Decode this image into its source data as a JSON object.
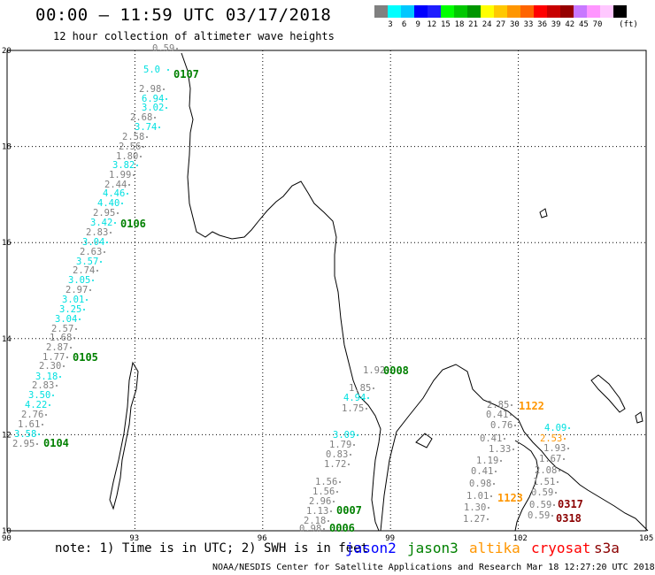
{
  "header": {
    "title": "00:00 – 11:59 UTC 03/17/2018",
    "subtitle": "12 hour collection of altimeter wave heights"
  },
  "legend": {
    "unit": "(ft)",
    "colors": [
      "#808080",
      "#00ffff",
      "#00c8ff",
      "#0000ff",
      "#1e1eff",
      "#00ff00",
      "#00c800",
      "#009600",
      "#ffff00",
      "#ffc800",
      "#ff9600",
      "#ff6400",
      "#ff0000",
      "#c80000",
      "#960000",
      "#c878ff",
      "#ff96ff",
      "#ffc8ff",
      "#000000"
    ],
    "labels": [
      "3",
      "6",
      "9",
      "12",
      "15",
      "18",
      "21",
      "24",
      "27",
      "30",
      "33",
      "36",
      "39",
      "42",
      "45",
      "70"
    ]
  },
  "axes": {
    "lon_ticks": [
      "90",
      "93",
      "96",
      "99",
      "102",
      "105"
    ],
    "lat_ticks": [
      "20",
      "18",
      "16",
      "14",
      "12",
      "10"
    ]
  },
  "measurements": [
    {
      "t": "0.59",
      "c": "#808080"
    },
    {
      "t": "5.0",
      "c": "#00e0e0"
    },
    {
      "t": "2.98",
      "c": "#808080"
    },
    {
      "t": "6.94",
      "c": "#00e0e0"
    },
    {
      "t": "3.02",
      "c": "#00e0e0"
    },
    {
      "t": "2.68",
      "c": "#808080"
    },
    {
      "t": "3.74",
      "c": "#00e0e0"
    },
    {
      "t": "2.58",
      "c": "#808080"
    },
    {
      "t": "2.56",
      "c": "#808080"
    },
    {
      "t": "1.80",
      "c": "#808080"
    },
    {
      "t": "3.82",
      "c": "#00e0e0"
    },
    {
      "t": "1.99",
      "c": "#808080"
    },
    {
      "t": "2.44",
      "c": "#808080"
    },
    {
      "t": "4.46",
      "c": "#00e0e0"
    },
    {
      "t": "4.40",
      "c": "#00e0e0"
    },
    {
      "t": "2.95",
      "c": "#808080"
    },
    {
      "t": "3.42",
      "c": "#00e0e0"
    },
    {
      "t": "2.83",
      "c": "#808080"
    },
    {
      "t": "3.04",
      "c": "#00e0e0"
    },
    {
      "t": "2.63",
      "c": "#808080"
    },
    {
      "t": "3.57",
      "c": "#00e0e0"
    },
    {
      "t": "2.74",
      "c": "#808080"
    },
    {
      "t": "3.05",
      "c": "#00e0e0"
    },
    {
      "t": "2.97",
      "c": "#808080"
    },
    {
      "t": "3.01",
      "c": "#00e0e0"
    },
    {
      "t": "3.25",
      "c": "#00e0e0"
    },
    {
      "t": "3.04",
      "c": "#00e0e0"
    },
    {
      "t": "2.57",
      "c": "#808080"
    },
    {
      "t": "1.68",
      "c": "#808080"
    },
    {
      "t": "2.87",
      "c": "#808080"
    },
    {
      "t": "1.77",
      "c": "#808080"
    },
    {
      "t": "2.30",
      "c": "#808080"
    },
    {
      "t": "3.18",
      "c": "#00e0e0"
    },
    {
      "t": "2.83",
      "c": "#808080"
    },
    {
      "t": "3.50",
      "c": "#00e0e0"
    },
    {
      "t": "4.22",
      "c": "#00e0e0"
    },
    {
      "t": "2.76",
      "c": "#808080"
    },
    {
      "t": "1.61",
      "c": "#808080"
    },
    {
      "t": "3.58",
      "c": "#00e0e0"
    },
    {
      "t": "2.95",
      "c": "#808080"
    },
    {
      "t": "1.92",
      "c": "#808080"
    },
    {
      "t": "1.85",
      "c": "#808080"
    },
    {
      "t": "4.94",
      "c": "#00e0e0"
    },
    {
      "t": "1.75",
      "c": "#808080"
    },
    {
      "t": "3.09",
      "c": "#00e0e0"
    },
    {
      "t": "1.79",
      "c": "#808080"
    },
    {
      "t": "0.83",
      "c": "#808080"
    },
    {
      "t": "1.72",
      "c": "#808080"
    },
    {
      "t": "1.56",
      "c": "#808080"
    },
    {
      "t": "1.56",
      "c": "#808080"
    },
    {
      "t": "2.96",
      "c": "#808080"
    },
    {
      "t": "1.13",
      "c": "#808080"
    },
    {
      "t": "2.18",
      "c": "#808080"
    },
    {
      "t": "0.98",
      "c": "#808080"
    },
    {
      "t": "2.85",
      "c": "#808080"
    },
    {
      "t": "0.41",
      "c": "#808080"
    },
    {
      "t": "0.76",
      "c": "#808080"
    },
    {
      "t": "0.41",
      "c": "#808080"
    },
    {
      "t": "1.33",
      "c": "#808080"
    },
    {
      "t": "1.19",
      "c": "#808080"
    },
    {
      "t": "0.41",
      "c": "#808080"
    },
    {
      "t": "0.98",
      "c": "#808080"
    },
    {
      "t": "1.01",
      "c": "#808080"
    },
    {
      "t": "1.30",
      "c": "#808080"
    },
    {
      "t": "1.27",
      "c": "#808080"
    },
    {
      "t": "4.09",
      "c": "#00e0e0"
    },
    {
      "t": "2.53",
      "c": "#ff9600"
    },
    {
      "t": "1.93",
      "c": "#808080"
    },
    {
      "t": "1.67",
      "c": "#808080"
    },
    {
      "t": "2.08",
      "c": "#808080"
    },
    {
      "t": "1.51",
      "c": "#808080"
    },
    {
      "t": "0.59",
      "c": "#808080"
    },
    {
      "t": "0.59",
      "c": "#808080"
    },
    {
      "t": "0.59",
      "c": "#808080"
    }
  ],
  "passes": [
    {
      "t": "0107",
      "c": "#008000"
    },
    {
      "t": "0106",
      "c": "#008000"
    },
    {
      "t": "0105",
      "c": "#008000"
    },
    {
      "t": "0104",
      "c": "#008000"
    },
    {
      "t": "0008",
      "c": "#008000"
    },
    {
      "t": "0007",
      "c": "#008000"
    },
    {
      "t": "0006",
      "c": "#008000"
    },
    {
      "t": "1122",
      "c": "#ff9600"
    },
    {
      "t": "1123",
      "c": "#ff9600"
    },
    {
      "t": "0317",
      "c": "#8b0000"
    },
    {
      "t": "0318",
      "c": "#8b0000"
    }
  ],
  "footer": {
    "note": "note:  1) Time is in UTC;  2) SWH is in feet",
    "satellites": [
      {
        "name": "jason2",
        "color": "#0000ff"
      },
      {
        "name": "jason3",
        "color": "#008000"
      },
      {
        "name": "altika",
        "color": "#ff9600"
      },
      {
        "name": "cryosat",
        "color": "#ff0000"
      },
      {
        "name": "s3a",
        "color": "#8b0000"
      }
    ],
    "credit": "NOAA/NESDIS Center for Satellite Applications and Research    Mar 18 12:27:20 UTC 2018"
  }
}
